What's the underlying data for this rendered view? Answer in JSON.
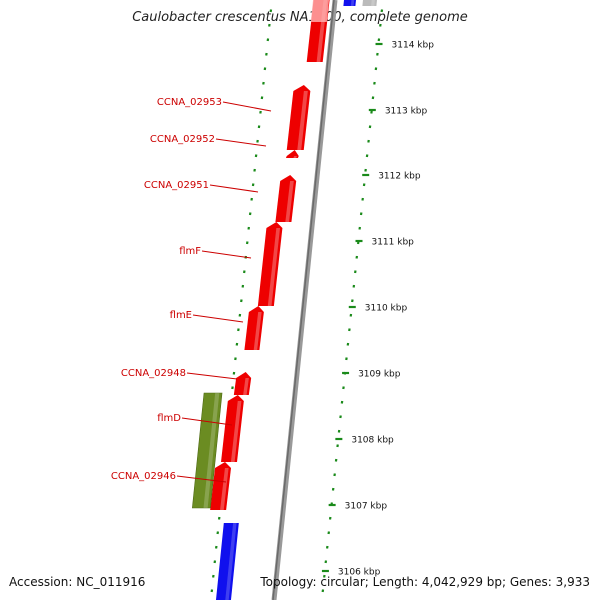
{
  "title": "Caulobacter crescentus NA1000, complete genome",
  "footer": {
    "accession": "Accession: NC_011916",
    "topology": "Topology: circular; Length: 4,042,929 bp; Genes: 3,933"
  },
  "colors": {
    "gene_cds": "#ee0000",
    "gene_green": "#6b8c22",
    "gene_blue": "#1010ee",
    "backbone": "#888888",
    "dots": "#1a8a1a",
    "labels": "#cc0000"
  },
  "ticks": [
    "3114 kbp",
    "3113 kbp",
    "3112 kbp",
    "3111 kbp",
    "3110 kbp",
    "3109 kbp",
    "3108 kbp",
    "3107 kbp",
    "3106 kbp"
  ],
  "gene_labels": [
    "CCNA_02953",
    "CCNA_02952",
    "CCNA_02951",
    "flmF",
    "flmE",
    "CCNA_02948",
    "flmD",
    "CCNA_02946"
  ]
}
